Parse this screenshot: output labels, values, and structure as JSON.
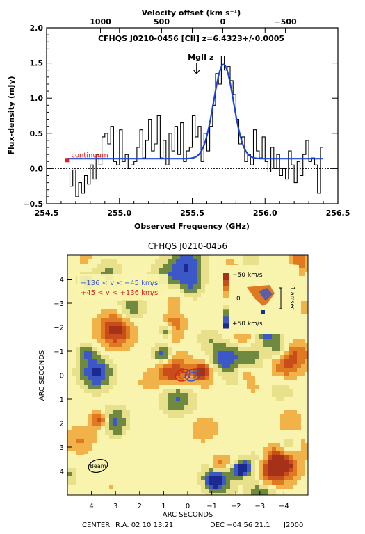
{
  "chart_data": [
    {
      "type": "line",
      "title": "CFHQS J0210-0456  [CII] z=6.4323+/-0.0005",
      "xlabel": "Observed Frequency (GHz)",
      "ylabel": "Flux-density (mJy)",
      "top_xlabel": "Velocity offset (km s⁻¹)",
      "xlim": [
        254.5,
        256.5
      ],
      "ylim": [
        -0.5,
        2.0
      ],
      "x_ticks": [
        254.5,
        255.0,
        255.5,
        256.0,
        256.5
      ],
      "x_tick_labels": [
        "254.5",
        "255.0",
        "255.5",
        "256.0",
        "256.5"
      ],
      "y_ticks": [
        -0.5,
        0.0,
        0.5,
        1.0,
        1.5,
        2.0
      ],
      "y_tick_labels": [
        "−0.5",
        "0.0",
        "0.5",
        "1.0",
        "1.5",
        "2.0"
      ],
      "top_ticks": [
        {
          "value": 1000,
          "freq": 254.87,
          "label": "1000"
        },
        {
          "value": 500,
          "freq": 255.29,
          "label": "500"
        },
        {
          "value": 0,
          "freq": 255.71,
          "label": "0"
        },
        {
          "value": -500,
          "freq": 256.14,
          "label": "−500"
        }
      ],
      "grid": false,
      "annotations": {
        "mgii_label": "MgII z",
        "mgii_freq": 255.53,
        "continuum_label": "continuum",
        "continuum_freq": 254.64,
        "continuum_flux": 0.12
      },
      "series": [
        {
          "style": "step",
          "color": "#000000",
          "x": [
            254.65,
            254.67,
            254.69,
            254.71,
            254.73,
            254.75,
            254.77,
            254.79,
            254.81,
            254.83,
            254.85,
            254.87,
            254.89,
            254.91,
            254.93,
            254.95,
            254.97,
            254.99,
            255.01,
            255.03,
            255.05,
            255.07,
            255.09,
            255.11,
            255.13,
            255.15,
            255.17,
            255.19,
            255.21,
            255.23,
            255.25,
            255.27,
            255.29,
            255.31,
            255.33,
            255.35,
            255.37,
            255.39,
            255.41,
            255.43,
            255.45,
            255.47,
            255.49,
            255.51,
            255.53,
            255.55,
            255.57,
            255.59,
            255.61,
            255.63,
            255.65,
            255.67,
            255.69,
            255.71,
            255.73,
            255.75,
            255.77,
            255.79,
            255.81,
            255.83,
            255.85,
            255.87,
            255.89,
            255.91,
            255.93,
            255.95,
            255.97,
            255.99,
            256.01,
            256.03,
            256.05,
            256.07,
            256.09,
            256.11,
            256.13,
            256.15,
            256.17,
            256.19,
            256.21,
            256.23,
            256.25,
            256.27,
            256.29,
            256.31,
            256.33,
            256.35,
            256.37,
            256.39
          ],
          "values": [
            -0.05,
            -0.25,
            -0.02,
            -0.4,
            -0.2,
            -0.35,
            -0.1,
            -0.22,
            0.05,
            -0.15,
            0.2,
            0.05,
            0.45,
            0.5,
            0.35,
            0.6,
            0.1,
            0.05,
            0.55,
            0.1,
            0.2,
            0.0,
            0.05,
            0.1,
            0.3,
            0.55,
            0.15,
            0.4,
            0.7,
            0.25,
            0.35,
            0.75,
            0.15,
            0.4,
            0.05,
            0.5,
            0.25,
            0.6,
            0.2,
            0.65,
            0.1,
            0.25,
            0.3,
            0.75,
            0.45,
            0.6,
            0.1,
            0.5,
            0.25,
            0.6,
            0.9,
            1.35,
            1.2,
            1.6,
            1.4,
            1.45,
            1.25,
            1.05,
            0.7,
            0.35,
            0.45,
            0.1,
            0.2,
            0.05,
            0.55,
            0.25,
            0.15,
            0.45,
            0.1,
            -0.05,
            0.3,
            0.0,
            0.2,
            -0.1,
            0.0,
            -0.15,
            0.25,
            0.05,
            -0.2,
            0.1,
            -0.1,
            0.2,
            0.4,
            0.1,
            0.15,
            0.05,
            -0.35,
            0.3
          ]
        },
        {
          "style": "gaussian_fit",
          "color": "#1a44d6",
          "baseline": 0.14,
          "peak_above_baseline": 1.34,
          "center": 255.715,
          "sigma": 0.068,
          "x_start": 254.64,
          "x_end": 256.4
        }
      ]
    },
    {
      "type": "heatmap",
      "title": "CFHQS J0210-0456",
      "xlabel": "ARC SECONDS",
      "ylabel": "ARC SECONDS",
      "xlim": [
        5,
        -5
      ],
      "ylim": [
        -5,
        5
      ],
      "x_ticks": [
        4,
        3,
        2,
        1,
        0,
        -1,
        -2,
        -3,
        -4
      ],
      "x_tick_labels": [
        "4",
        "3",
        "2",
        "1",
        "0",
        "−1",
        "−2",
        "−3",
        "−4"
      ],
      "y_ticks": [
        -4,
        -3,
        -2,
        -1,
        0,
        1,
        2,
        3,
        4
      ],
      "y_tick_labels": [
        "−4",
        "−3",
        "−2",
        "−1",
        "0",
        "1",
        "2",
        "3",
        "4"
      ],
      "colormap": [
        "#1b2a8c",
        "#3b57c8",
        "#6f8a40",
        "#e9e08c",
        "#f8f4ae",
        "#f2b24a",
        "#e07a22",
        "#c94d1b",
        "#a53218"
      ],
      "legend": [
        {
          "label": "−136 < v < −45 km/s",
          "color": "#3b57c8"
        },
        {
          "label": "+45 < v < +136 km/s",
          "color": "#d0261e"
        }
      ],
      "contours": [
        {
          "color": "#3b57c8",
          "x": -0.2,
          "y": 0.0
        },
        {
          "color": "#d0261e",
          "x": 0.2,
          "y": 0.0
        }
      ],
      "beam_label": "Beam",
      "inset": {
        "top_label": "−50 km/s",
        "mid_label": "0",
        "bottom_label": "+50 km/s",
        "scale_label": "1 arcsec"
      },
      "center_line": {
        "label": "CENTER:",
        "ra": "R.A. 02 10 13.21",
        "dec": "DEC  −04 56 21.1",
        "epoch": "J2000"
      }
    }
  ]
}
